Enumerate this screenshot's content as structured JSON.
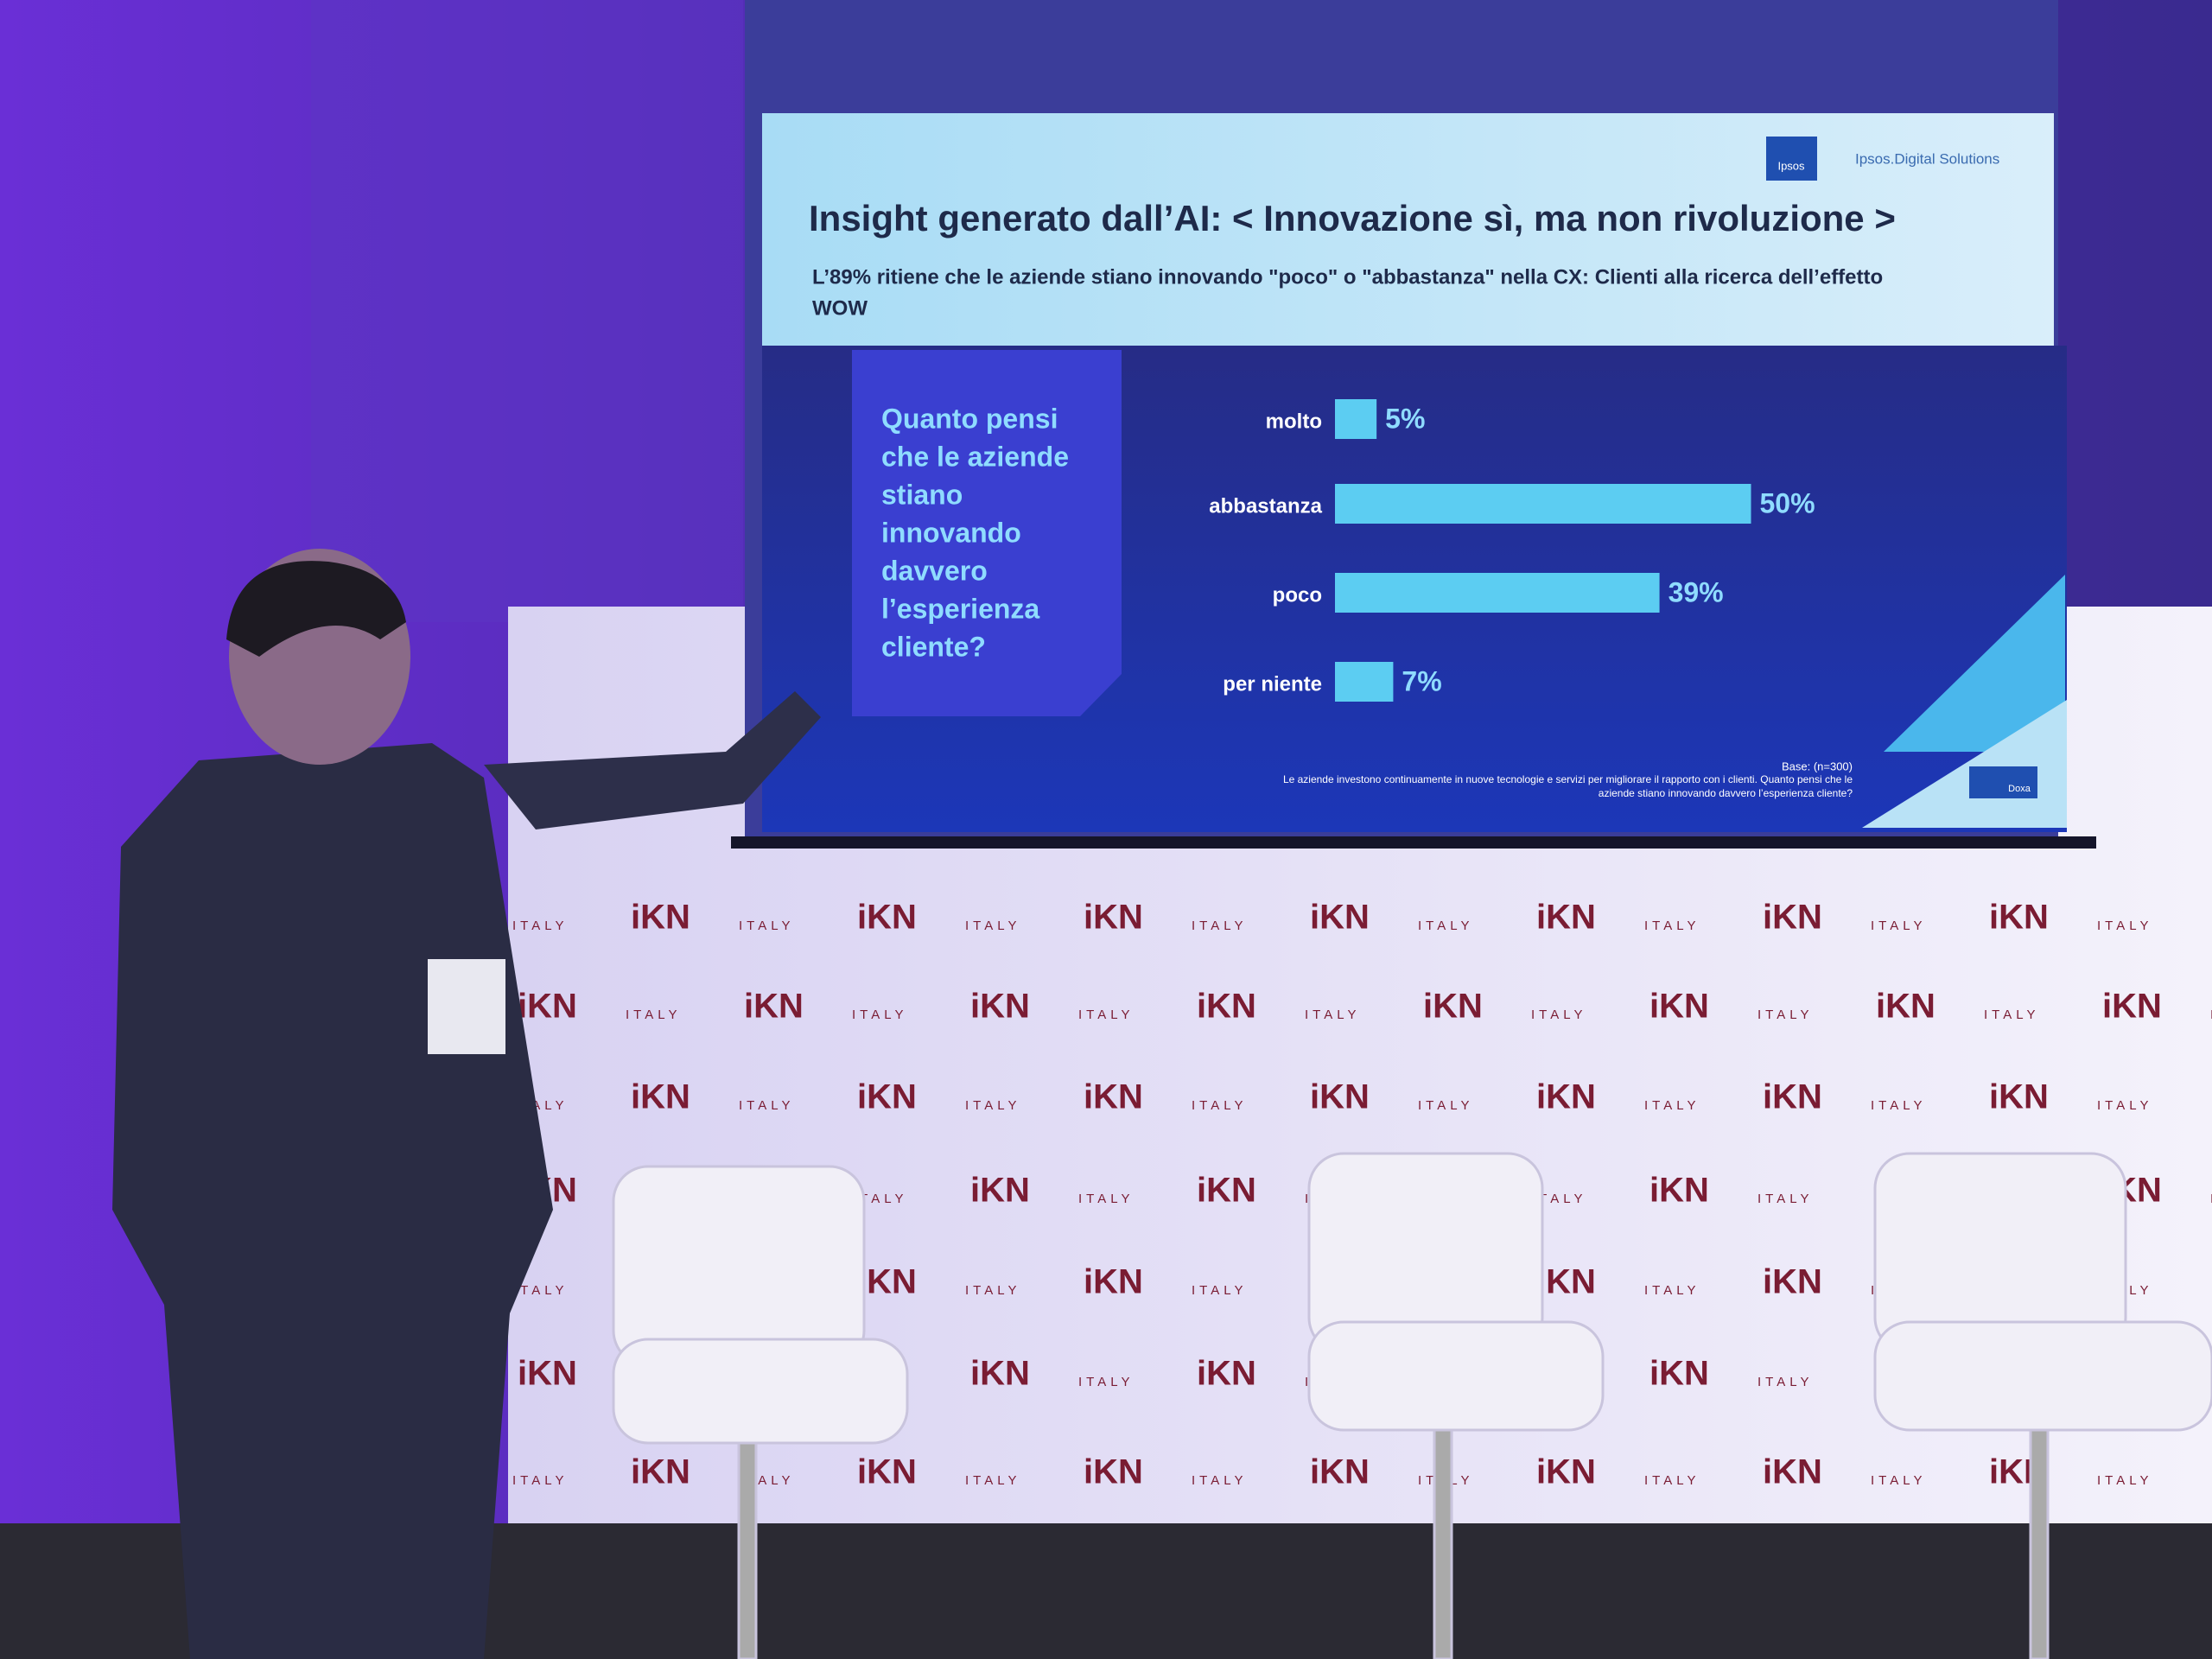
{
  "chart_data": {
    "type": "hbar",
    "title": "Insight generato dall’AI: < Innovazione sì, ma non rivoluzione >",
    "subtitle_lines": [
      "L’89% ritiene che le aziende stiano innovando \"poco\" o \"abbastanza\" nella CX: Clienti alla ricerca dell’effetto",
      "WOW"
    ],
    "question_lines": [
      "Quanto pensi",
      "che le aziende",
      "stiano",
      "innovando",
      "davvero",
      "l’esperienza",
      "cliente?"
    ],
    "categories": [
      "molto",
      "abbastanza",
      "poco",
      "per niente"
    ],
    "values": [
      5,
      50,
      39,
      7
    ],
    "value_labels": [
      "5%",
      "50%",
      "39%",
      "7%"
    ],
    "color": "#5ccdf2",
    "base_note": "Base: (n=300)",
    "footnote_lines": [
      "Le aziende investono continuamente in nuove tecnologie e servizi per migliorare il rapporto con i clienti. Quanto pensi che le",
      "aziende stiano innovando davvero l’esperienza cliente?"
    ]
  },
  "logos": {
    "ipsos": "Ipsos",
    "digital": "Ipsos.Digital Solutions",
    "doxa": "Doxa"
  },
  "backdrop": {
    "brand": "iKN",
    "tagline": "ITALY"
  }
}
